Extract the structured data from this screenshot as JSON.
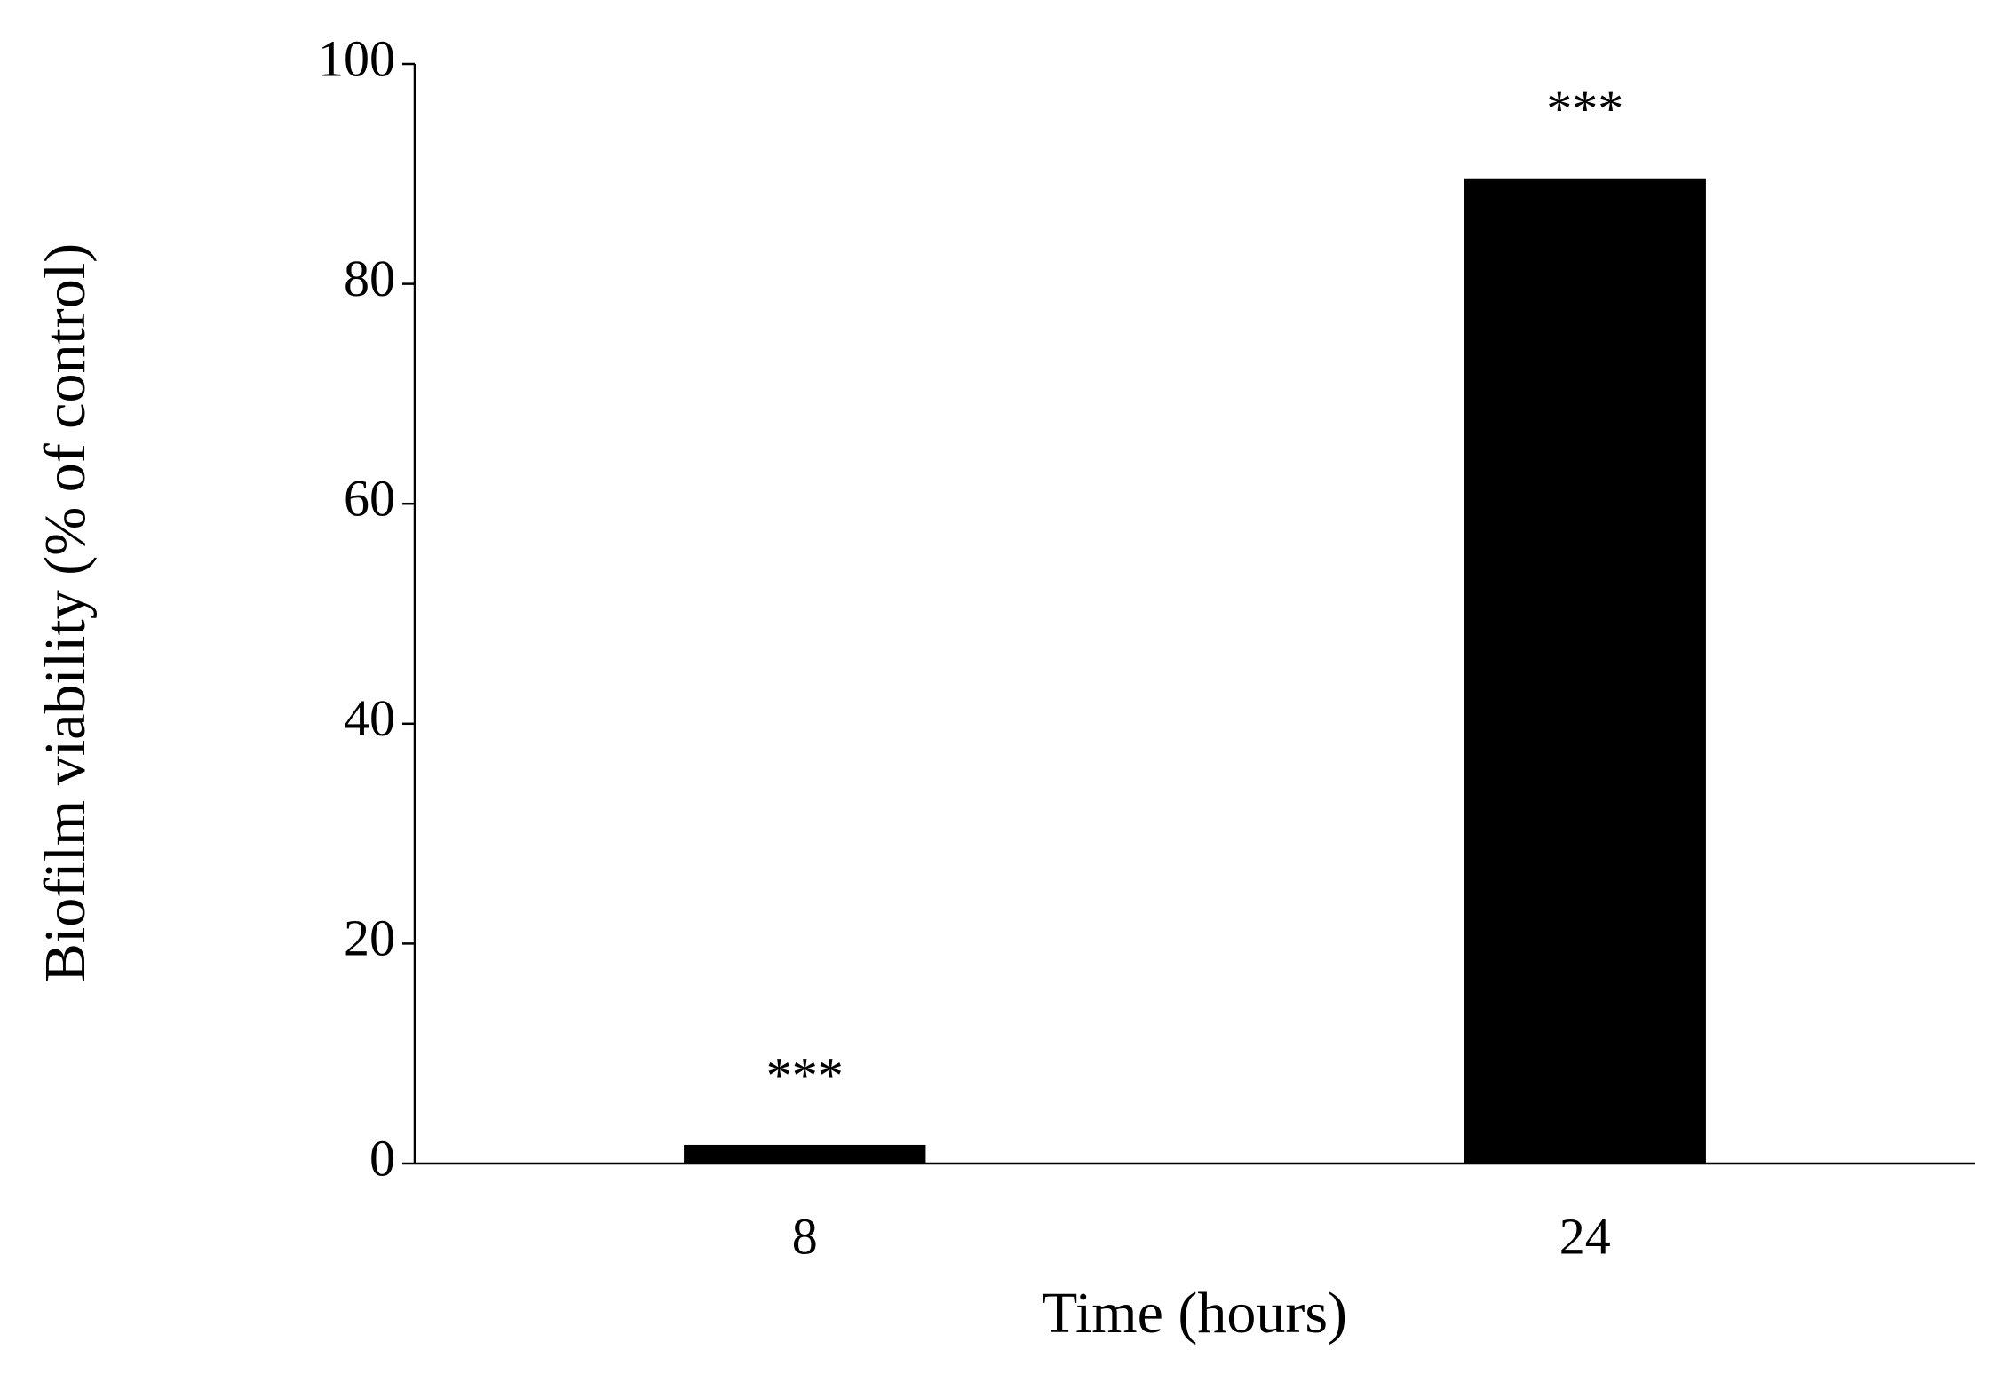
{
  "chart_data": {
    "type": "bar",
    "x_label": "Time (hours)",
    "y_label": "Biofilm viability (% of control)",
    "categories": [
      "8",
      "24"
    ],
    "values": [
      1.7,
      89.6
    ],
    "annotations": [
      "***",
      "***"
    ],
    "color": "#000000",
    "ylim": [
      0,
      100
    ],
    "yticks": [
      0,
      20,
      40,
      60,
      80,
      100
    ],
    "grid": false
  }
}
